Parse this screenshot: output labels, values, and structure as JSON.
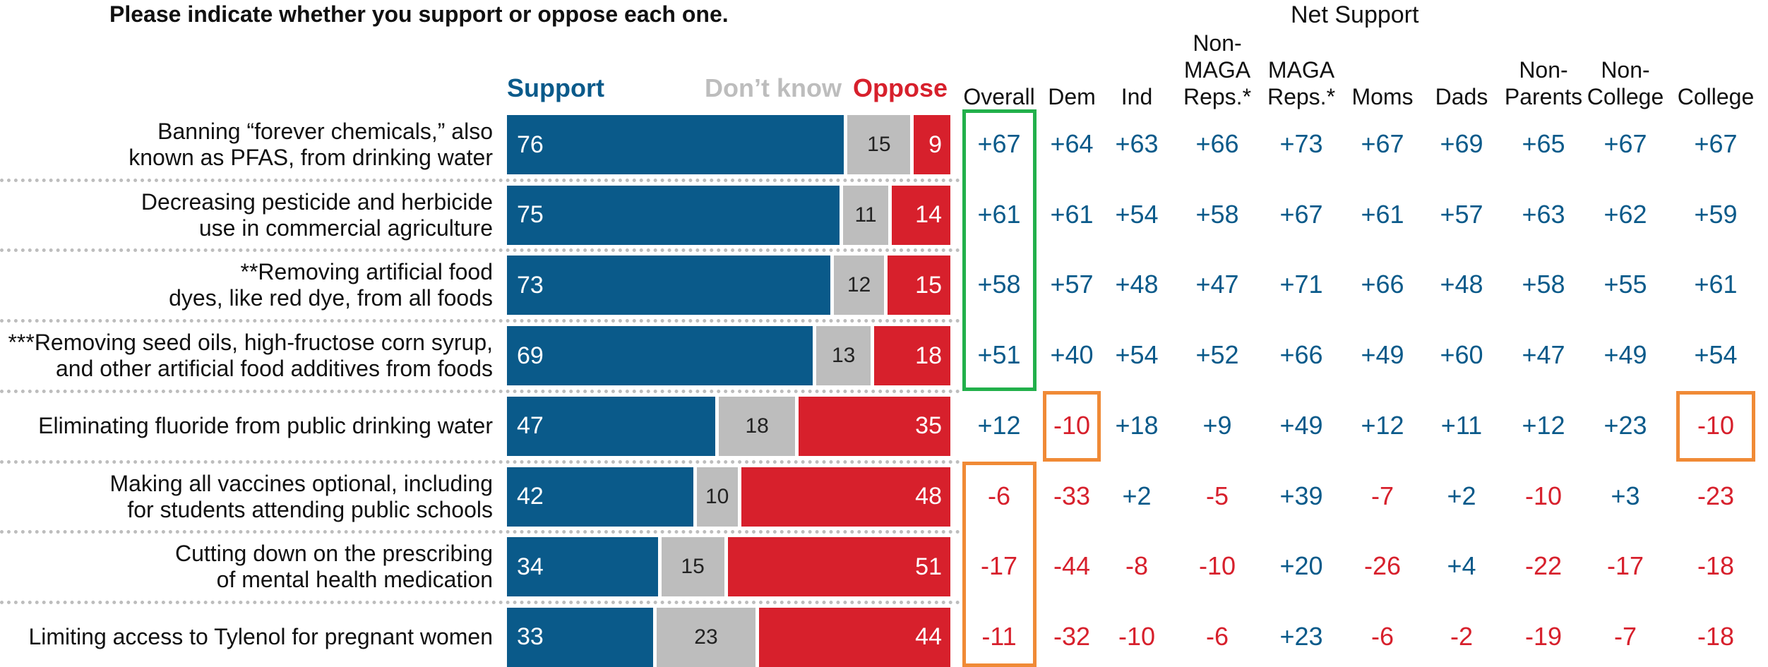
{
  "header": {
    "title": "Please indicate whether you support or oppose each one.",
    "net_title": "Net Support"
  },
  "legend": {
    "support": "Support",
    "dont_know": "Don't know",
    "oppose": "Oppose"
  },
  "colors": {
    "support": "#0a5a8a",
    "dont_know": "#bdbdbd",
    "oppose": "#d7202c",
    "positive_text": "#0a5a8a",
    "negative_text": "#d7202c",
    "highlight_green": "#22b04b",
    "highlight_orange": "#f08a36"
  },
  "columns": [
    {
      "key": "overall",
      "lines": [
        "Overall"
      ]
    },
    {
      "key": "dem",
      "lines": [
        "Dem"
      ]
    },
    {
      "key": "ind",
      "lines": [
        "Ind"
      ]
    },
    {
      "key": "nonmaga",
      "lines": [
        "Non-",
        "MAGA",
        "Reps.*"
      ]
    },
    {
      "key": "maga",
      "lines": [
        "MAGA",
        "Reps.*"
      ]
    },
    {
      "key": "moms",
      "lines": [
        "Moms"
      ]
    },
    {
      "key": "dads",
      "lines": [
        "Dads"
      ]
    },
    {
      "key": "nonparents",
      "lines": [
        "Non-",
        "Parents"
      ]
    },
    {
      "key": "noncollege",
      "lines": [
        "Non-",
        "College"
      ]
    },
    {
      "key": "college",
      "lines": [
        "College"
      ]
    }
  ],
  "chart_data": {
    "type": "bar",
    "orientation": "horizontal",
    "stacked": true,
    "categories": [
      [
        "Banning “forever chemicals,” also",
        "known as PFAS, from drinking water"
      ],
      [
        "Decreasing pesticide and herbicide",
        "use in commercial agriculture"
      ],
      [
        "**Removing artificial food",
        "dyes, like red dye, from all foods"
      ],
      [
        "***Removing seed oils, high-fructose corn syrup,",
        "and other artificial food additives from foods"
      ],
      [
        "Eliminating fluoride from public drinking water"
      ],
      [
        "Making all vaccines optional, including",
        "for students attending public schools"
      ],
      [
        "Cutting down on the prescribing",
        "of mental health medication"
      ],
      [
        "Limiting access to Tylenol for pregnant women"
      ]
    ],
    "series": [
      {
        "name": "Support",
        "values": [
          76,
          75,
          73,
          69,
          47,
          42,
          34,
          33
        ]
      },
      {
        "name": "Don’t know",
        "values": [
          15,
          11,
          12,
          13,
          18,
          10,
          15,
          23
        ]
      },
      {
        "name": "Oppose",
        "values": [
          9,
          14,
          15,
          18,
          35,
          48,
          51,
          44
        ]
      }
    ],
    "net_support": [
      [
        "+67",
        "+64",
        "+63",
        "+66",
        "+73",
        "+67",
        "+69",
        "+65",
        "+67",
        "+67"
      ],
      [
        "+61",
        "+61",
        "+54",
        "+58",
        "+67",
        "+61",
        "+57",
        "+63",
        "+62",
        "+59"
      ],
      [
        "+58",
        "+57",
        "+48",
        "+47",
        "+71",
        "+66",
        "+48",
        "+58",
        "+55",
        "+61"
      ],
      [
        "+51",
        "+40",
        "+54",
        "+52",
        "+66",
        "+49",
        "+60",
        "+47",
        "+49",
        "+54"
      ],
      [
        "+12",
        "-10",
        "+18",
        "+9",
        "+49",
        "+12",
        "+11",
        "+12",
        "+23",
        "-10"
      ],
      [
        "-6",
        "-33",
        "+2",
        "-5",
        "+39",
        "-7",
        "+2",
        "-10",
        "+3",
        "-23"
      ],
      [
        "-17",
        "-44",
        "-8",
        "-10",
        "+20",
        "-26",
        "+4",
        "-22",
        "-17",
        "-18"
      ],
      [
        "-11",
        "-32",
        "-10",
        "-6",
        "+23",
        "-6",
        "-2",
        "-19",
        "-7",
        "-18"
      ]
    ],
    "highlights": [
      {
        "color": "green",
        "column": "overall",
        "rows": [
          0,
          3
        ]
      },
      {
        "color": "orange",
        "column": "overall",
        "rows": [
          5,
          7
        ]
      },
      {
        "color": "orange",
        "column": "dem",
        "rows": [
          4,
          4
        ]
      },
      {
        "color": "orange",
        "column": "college",
        "rows": [
          4,
          4
        ]
      }
    ],
    "xlim": [
      0,
      100
    ]
  }
}
